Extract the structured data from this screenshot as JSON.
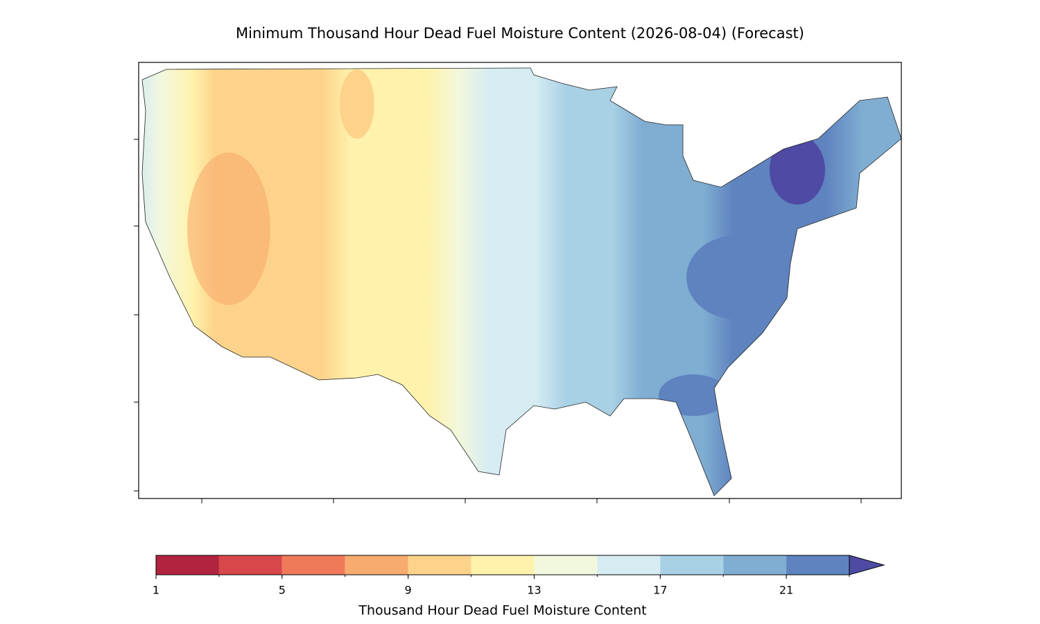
{
  "title": "Minimum Thousand Hour Dead Fuel Moisture Content (2026-08-04) (Forecast)",
  "colorbar": {
    "label": "Thousand Hour Dead Fuel Moisture Content",
    "levels": [
      1,
      3,
      5,
      7,
      9,
      11,
      13,
      15,
      17,
      19,
      21,
      23
    ],
    "colors": [
      "#b2233f",
      "#d8474a",
      "#ef7a5a",
      "#f8ab6e",
      "#fdd38b",
      "#fff2ad",
      "#f2f8dd",
      "#d6ecf2",
      "#a9d1e5",
      "#80aed2",
      "#5e83bf"
    ],
    "extend_color": "#4f4aa3",
    "ticks": [
      1,
      5,
      9,
      13,
      17,
      21
    ]
  }
}
